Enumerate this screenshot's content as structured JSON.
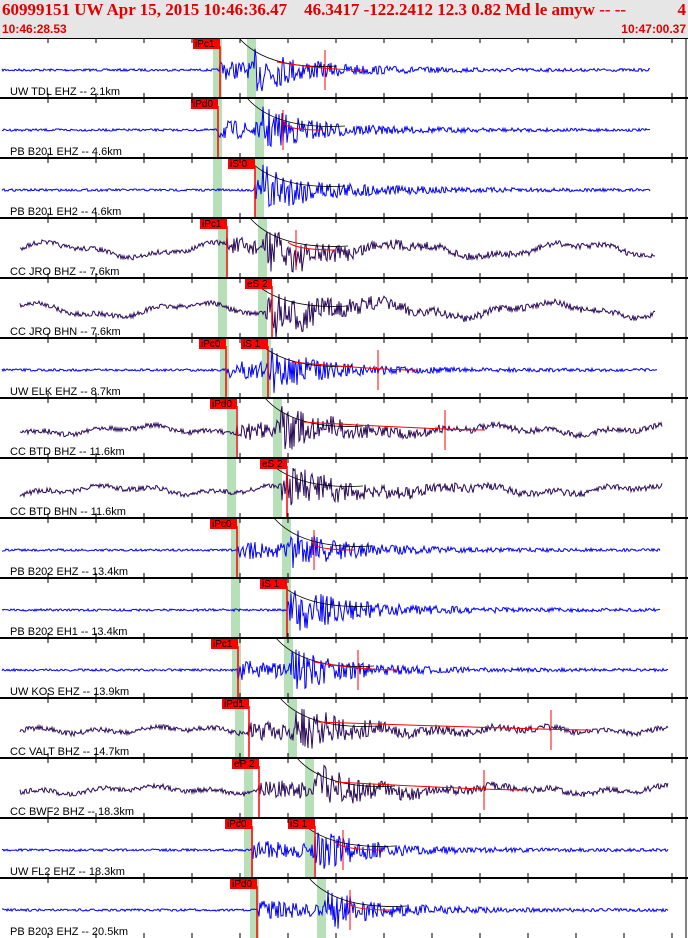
{
  "header": {
    "title": "60999151 UW Apr 15, 2015 10:46:36.47    46.3417 -122.2412 12.3 0.82 Md le amyw -- --",
    "count": "4",
    "start_time": "10:46:28.53",
    "end_time": "10:47:00.37"
  },
  "colors": {
    "blue": "#0000ff",
    "dark": "#2b0a5c",
    "pick": "#ff0000",
    "band": "#b8e0b8",
    "header_text": "#e00000"
  },
  "traces": [
    {
      "label": "UW TDL EHZ -- 2.1km",
      "picks": [
        "iPc1"
      ]
    },
    {
      "label": "PB B201 EHZ -- 4.6km",
      "picks": [
        "iPd0"
      ]
    },
    {
      "label": "PB B201 EH2 -- 4.6km",
      "picks": [
        "iS 0"
      ]
    },
    {
      "label": "CC JRO BHZ -- 7.6km",
      "picks": [
        "iPc1"
      ]
    },
    {
      "label": "CC JRO BHN -- 7.6km",
      "picks": [
        "eS 2"
      ]
    },
    {
      "label": "UW ELK EHZ -- 8.7km",
      "picks": [
        "iPc0",
        "iS 1"
      ]
    },
    {
      "label": "CC BTD BHZ -- 11.6km",
      "picks": [
        "iPd0"
      ]
    },
    {
      "label": "CC BTD BHN -- 11.6km",
      "picks": [
        "eS 2"
      ]
    },
    {
      "label": "PB B202 EHZ -- 13.4km",
      "picks": [
        "iPc0"
      ]
    },
    {
      "label": "PB B202 EH1 -- 13.4km",
      "picks": [
        "iS 1"
      ]
    },
    {
      "label": "UW KOS EHZ -- 13.9km",
      "picks": [
        "iPc1"
      ]
    },
    {
      "label": "CC VALT BHZ -- 14.7km",
      "picks": [
        "iPd1"
      ]
    },
    {
      "label": "CC BWF2 BHZ -- 18.3km",
      "picks": [
        "eP 2"
      ]
    },
    {
      "label": "UW FL2 EHZ -- 18.3km",
      "picks": [
        "iPc0",
        "iS 1"
      ]
    },
    {
      "label": "PB B203 EHZ -- 20.5km",
      "picks": [
        "iPd0"
      ]
    }
  ]
}
